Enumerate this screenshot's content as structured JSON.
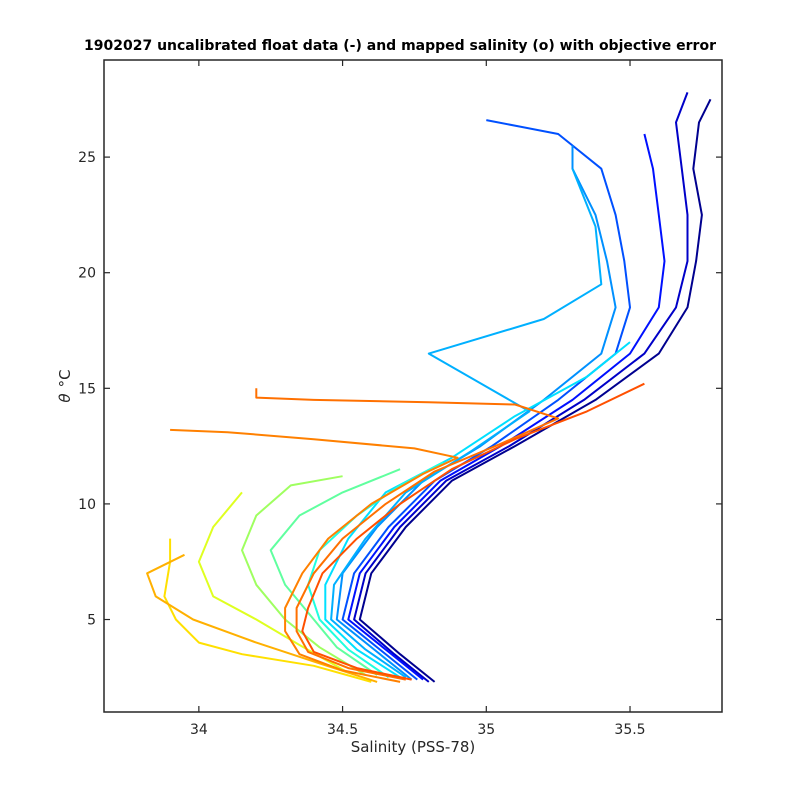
{
  "chart_data": {
    "type": "line",
    "title": "1902027 uncalibrated float data (-) and mapped salinity (o) with objective error",
    "xlabel": "Salinity (PSS-78)",
    "ylabel_symbol": "θ",
    "ylabel_unit": "°C",
    "xlim": [
      33.67,
      35.82
    ],
    "ylim": [
      1.0,
      29.2
    ],
    "x_ticks": [
      34,
      34.5,
      35,
      35.5
    ],
    "x_tick_labels": [
      "34",
      "34.5",
      "35",
      "35.5"
    ],
    "y_ticks": [
      5,
      10,
      15,
      20,
      25
    ],
    "y_tick_labels": [
      "5",
      "10",
      "15",
      "20",
      "25"
    ],
    "grid": false,
    "colormap": "jet",
    "series": [
      {
        "color": "#00008f",
        "points": [
          [
            34.82,
            2.3
          ],
          [
            34.7,
            3.5
          ],
          [
            34.56,
            5.0
          ],
          [
            34.6,
            7.0
          ],
          [
            34.72,
            9.0
          ],
          [
            34.88,
            11.0
          ],
          [
            35.1,
            12.5
          ],
          [
            35.38,
            14.5
          ],
          [
            35.6,
            16.5
          ],
          [
            35.7,
            18.5
          ],
          [
            35.73,
            20.5
          ],
          [
            35.75,
            22.5
          ],
          [
            35.72,
            24.5
          ],
          [
            35.74,
            26.5
          ],
          [
            35.78,
            27.5
          ]
        ]
      },
      {
        "color": "#0000c8",
        "points": [
          [
            34.8,
            2.3
          ],
          [
            34.68,
            3.5
          ],
          [
            34.54,
            5.0
          ],
          [
            34.58,
            7.0
          ],
          [
            34.7,
            9.0
          ],
          [
            34.86,
            11.0
          ],
          [
            35.08,
            12.5
          ],
          [
            35.34,
            14.5
          ],
          [
            35.55,
            16.5
          ],
          [
            35.66,
            18.5
          ],
          [
            35.7,
            20.5
          ],
          [
            35.7,
            22.5
          ],
          [
            35.68,
            24.5
          ],
          [
            35.66,
            26.5
          ],
          [
            35.7,
            27.8
          ]
        ]
      },
      {
        "color": "#0010ff",
        "points": [
          [
            34.78,
            2.4
          ],
          [
            34.66,
            3.6
          ],
          [
            34.52,
            5.0
          ],
          [
            34.56,
            7.0
          ],
          [
            34.68,
            9.0
          ],
          [
            34.84,
            11.0
          ],
          [
            35.05,
            12.5
          ],
          [
            35.3,
            14.5
          ],
          [
            35.5,
            16.5
          ],
          [
            35.6,
            18.5
          ],
          [
            35.62,
            20.5
          ],
          [
            35.6,
            22.5
          ],
          [
            35.58,
            24.5
          ],
          [
            35.55,
            26.0
          ]
        ]
      },
      {
        "color": "#0050ff",
        "points": [
          [
            34.76,
            2.4
          ],
          [
            34.64,
            3.6
          ],
          [
            34.5,
            5.0
          ],
          [
            34.54,
            7.0
          ],
          [
            34.66,
            9.0
          ],
          [
            34.82,
            11.0
          ],
          [
            35.02,
            12.5
          ],
          [
            35.25,
            14.5
          ],
          [
            35.45,
            16.5
          ],
          [
            35.5,
            18.5
          ],
          [
            35.48,
            20.5
          ],
          [
            35.45,
            22.5
          ],
          [
            35.4,
            24.5
          ],
          [
            35.25,
            26.0
          ],
          [
            35.0,
            26.6
          ]
        ]
      },
      {
        "color": "#0090ff",
        "points": [
          [
            34.74,
            2.4
          ],
          [
            34.62,
            3.6
          ],
          [
            34.48,
            5.0
          ],
          [
            34.5,
            7.0
          ],
          [
            34.62,
            9.0
          ],
          [
            34.78,
            11.0
          ],
          [
            34.98,
            12.5
          ],
          [
            35.2,
            14.5
          ],
          [
            35.4,
            16.5
          ],
          [
            35.45,
            18.5
          ],
          [
            35.42,
            20.5
          ],
          [
            35.38,
            22.5
          ],
          [
            35.3,
            24.5
          ],
          [
            35.3,
            25.5
          ]
        ]
      },
      {
        "color": "#00b0ff",
        "points": [
          [
            34.72,
            2.5
          ],
          [
            34.58,
            3.7
          ],
          [
            34.46,
            5.0
          ],
          [
            34.47,
            6.5
          ],
          [
            34.58,
            8.5
          ],
          [
            34.72,
            10.5
          ],
          [
            34.95,
            12.3
          ],
          [
            35.15,
            14.0
          ],
          [
            34.8,
            16.5
          ],
          [
            35.2,
            18.0
          ],
          [
            35.4,
            19.5
          ],
          [
            35.38,
            22.0
          ],
          [
            35.3,
            24.5
          ]
        ]
      },
      {
        "color": "#00e0ff",
        "points": [
          [
            34.7,
            2.5
          ],
          [
            34.55,
            3.7
          ],
          [
            34.44,
            5.0
          ],
          [
            34.44,
            6.5
          ],
          [
            34.52,
            8.5
          ],
          [
            34.65,
            10.5
          ],
          [
            34.88,
            12.0
          ],
          [
            35.1,
            13.8
          ],
          [
            35.35,
            15.5
          ],
          [
            35.5,
            17.0
          ]
        ]
      },
      {
        "color": "#20ffdf",
        "points": [
          [
            34.66,
            2.5
          ],
          [
            34.52,
            3.7
          ],
          [
            34.42,
            5.0
          ],
          [
            34.38,
            6.5
          ],
          [
            34.42,
            8.0
          ],
          [
            34.55,
            9.5
          ],
          [
            34.7,
            10.8
          ],
          [
            34.85,
            11.8
          ]
        ]
      },
      {
        "color": "#60ff9f",
        "points": [
          [
            34.62,
            2.6
          ],
          [
            34.48,
            3.8
          ],
          [
            34.4,
            5.0
          ],
          [
            34.3,
            6.5
          ],
          [
            34.25,
            8.0
          ],
          [
            34.35,
            9.5
          ],
          [
            34.5,
            10.5
          ],
          [
            34.7,
            11.5
          ]
        ]
      },
      {
        "color": "#9fff60",
        "points": [
          [
            34.58,
            2.6
          ],
          [
            34.42,
            3.8
          ],
          [
            34.3,
            5.0
          ],
          [
            34.2,
            6.5
          ],
          [
            34.15,
            8.0
          ],
          [
            34.2,
            9.5
          ],
          [
            34.32,
            10.8
          ],
          [
            34.5,
            11.2
          ]
        ]
      },
      {
        "color": "#dfff20",
        "points": [
          [
            34.52,
            2.7
          ],
          [
            34.35,
            3.9
          ],
          [
            34.2,
            5.0
          ],
          [
            34.05,
            6.0
          ],
          [
            34.0,
            7.5
          ],
          [
            34.05,
            9.0
          ],
          [
            34.15,
            10.5
          ]
        ]
      },
      {
        "color": "#ffe000",
        "points": [
          [
            34.6,
            2.3
          ],
          [
            34.4,
            3.0
          ],
          [
            34.15,
            3.5
          ],
          [
            34.0,
            4.0
          ],
          [
            33.92,
            5.0
          ],
          [
            33.88,
            6.0
          ],
          [
            33.9,
            7.5
          ],
          [
            33.9,
            8.5
          ]
        ]
      },
      {
        "color": "#ffb000",
        "points": [
          [
            34.62,
            2.3
          ],
          [
            34.42,
            3.1
          ],
          [
            34.2,
            4.0
          ],
          [
            33.98,
            5.0
          ],
          [
            33.85,
            6.0
          ],
          [
            33.82,
            7.0
          ],
          [
            33.95,
            7.8
          ]
        ]
      },
      {
        "color": "#ff8000",
        "points": [
          [
            34.7,
            2.3
          ],
          [
            34.5,
            2.8
          ],
          [
            34.35,
            3.5
          ],
          [
            34.3,
            4.5
          ],
          [
            34.3,
            5.5
          ],
          [
            34.36,
            7.0
          ],
          [
            34.45,
            8.5
          ],
          [
            34.6,
            10.0
          ],
          [
            34.78,
            11.3
          ],
          [
            34.9,
            12.0
          ],
          [
            34.75,
            12.4
          ],
          [
            34.4,
            12.8
          ],
          [
            34.1,
            13.1
          ],
          [
            33.9,
            13.2
          ]
        ]
      },
      {
        "color": "#ff7000",
        "points": [
          [
            34.72,
            2.4
          ],
          [
            34.52,
            2.9
          ],
          [
            34.38,
            3.6
          ],
          [
            34.34,
            4.5
          ],
          [
            34.34,
            5.5
          ],
          [
            34.4,
            7.0
          ],
          [
            34.5,
            8.5
          ],
          [
            34.65,
            10.0
          ],
          [
            34.82,
            11.4
          ],
          [
            35.05,
            12.6
          ],
          [
            35.25,
            13.7
          ],
          [
            35.1,
            14.3
          ],
          [
            34.8,
            14.4
          ],
          [
            34.4,
            14.5
          ],
          [
            34.2,
            14.6
          ],
          [
            34.2,
            15.0
          ]
        ]
      },
      {
        "color": "#ff5000",
        "points": [
          [
            34.74,
            2.4
          ],
          [
            34.55,
            2.9
          ],
          [
            34.4,
            3.6
          ],
          [
            34.36,
            4.5
          ],
          [
            34.38,
            5.5
          ],
          [
            34.43,
            7.0
          ],
          [
            34.55,
            8.5
          ],
          [
            34.7,
            10.0
          ],
          [
            34.88,
            11.5
          ],
          [
            35.1,
            12.8
          ],
          [
            35.35,
            14.0
          ],
          [
            35.55,
            15.2
          ]
        ]
      }
    ]
  }
}
